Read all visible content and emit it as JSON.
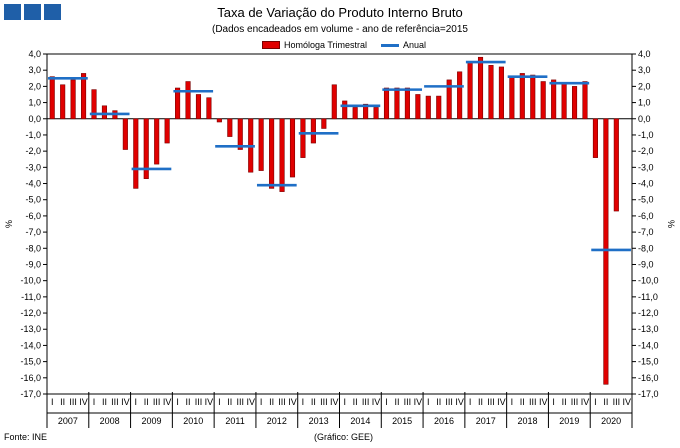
{
  "header": {
    "logo_name": "INE logo"
  },
  "chart_data": {
    "type": "bar",
    "title": "Taxa de Variação do Produto Interno Bruto",
    "subtitle": "(Dados encadeados em volume  - ano de referência=2015",
    "ylabel": "%",
    "ylim": [
      -17,
      4
    ],
    "yticks": [
      "4,0",
      "3,0",
      "2,0",
      "1,0",
      "0,0",
      "-1,0",
      "-2,0",
      "-3,0",
      "-4,0",
      "-5,0",
      "-6,0",
      "-7,0",
      "-8,0",
      "-9,0",
      "-10,0",
      "-11,0",
      "-12,0",
      "-13,0",
      "-14,0",
      "-15,0",
      "-16,0",
      "-17,0"
    ],
    "years": [
      "2007",
      "2008",
      "2009",
      "2010",
      "2011",
      "2012",
      "2013",
      "2014",
      "2015",
      "2016",
      "2017",
      "2018",
      "2019",
      "2020"
    ],
    "quarter_labels": [
      "I",
      "II",
      "III",
      "IV"
    ],
    "legend": {
      "quarterly": "Homóloga Trimestral",
      "annual": "Anual"
    },
    "series": [
      {
        "name": "Homóloga Trimestral",
        "color": "#e00000",
        "values": [
          2.6,
          2.1,
          2.4,
          2.8,
          1.8,
          0.8,
          0.5,
          -1.9,
          -4.3,
          -3.7,
          -2.8,
          -1.5,
          1.9,
          2.3,
          1.5,
          1.3,
          -0.2,
          -1.1,
          -1.9,
          -3.3,
          -3.2,
          -4.3,
          -4.5,
          -3.6,
          -2.4,
          -1.5,
          -0.6,
          2.1,
          1.1,
          0.7,
          0.9,
          0.7,
          1.9,
          1.9,
          1.9,
          1.5,
          1.4,
          1.4,
          2.4,
          2.9,
          3.5,
          3.8,
          3.3,
          3.2,
          2.6,
          2.8,
          2.7,
          2.3,
          2.4,
          2.2,
          2.0,
          2.3,
          -2.4,
          -16.4,
          -5.7
        ]
      },
      {
        "name": "Anual",
        "color": "#1f6fc6",
        "values": [
          2.5,
          0.3,
          -3.1,
          1.7,
          -1.7,
          -4.1,
          -0.9,
          0.8,
          1.8,
          2.0,
          3.5,
          2.6,
          2.2,
          -8.1
        ]
      }
    ]
  },
  "footer": {
    "source": "Fonte: INE",
    "credit": "(Gráfico: GEE)"
  }
}
